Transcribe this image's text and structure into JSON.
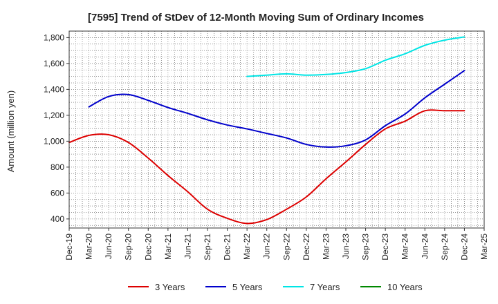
{
  "chart_data": {
    "type": "line",
    "title": "[7595]  Trend of StDev of 12-Month Moving Sum of Ordinary Incomes",
    "xlabel": "",
    "ylabel": "Amount (million yen)",
    "ylim": [
      330,
      1850
    ],
    "y_ticks": [
      400,
      600,
      800,
      1000,
      1200,
      1400,
      1600,
      1800
    ],
    "y_tick_labels": [
      "400",
      "600",
      "800",
      "1,000",
      "1,200",
      "1,400",
      "1,600",
      "1,800"
    ],
    "categories": [
      "Dec-19",
      "Mar-20",
      "Jun-20",
      "Sep-20",
      "Dec-20",
      "Mar-21",
      "Jun-21",
      "Sep-21",
      "Dec-21",
      "Mar-22",
      "Jun-22",
      "Sep-22",
      "Dec-22",
      "Mar-23",
      "Jun-23",
      "Sep-23",
      "Dec-23",
      "Mar-24",
      "Jun-24",
      "Sep-24",
      "Dec-24",
      "Mar-25"
    ],
    "grid": true,
    "legend_position": "bottom",
    "series": [
      {
        "name": "3 Years",
        "color": "#dd0000",
        "values": [
          990,
          1045,
          1050,
          990,
          870,
          735,
          610,
          475,
          405,
          365,
          395,
          475,
          570,
          710,
          840,
          975,
          1095,
          1155,
          1235,
          1235,
          1235,
          null
        ]
      },
      {
        "name": "5 Years",
        "color": "#0000cc",
        "values": [
          null,
          1265,
          1345,
          1360,
          1315,
          1260,
          1215,
          1165,
          1125,
          1095,
          1060,
          1025,
          975,
          955,
          965,
          1010,
          1120,
          1210,
          1335,
          1440,
          1545,
          null
        ]
      },
      {
        "name": "7 Years",
        "color": "#00e5e5",
        "values": [
          null,
          null,
          null,
          null,
          null,
          null,
          null,
          null,
          null,
          1500,
          1510,
          1520,
          1510,
          1515,
          1530,
          1560,
          1625,
          1675,
          1740,
          1780,
          1805,
          null
        ]
      },
      {
        "name": "10 Years",
        "color": "#008800",
        "values": [
          null,
          null,
          null,
          null,
          null,
          null,
          null,
          null,
          null,
          null,
          null,
          null,
          null,
          null,
          null,
          null,
          null,
          null,
          null,
          null,
          null,
          null
        ]
      }
    ]
  }
}
